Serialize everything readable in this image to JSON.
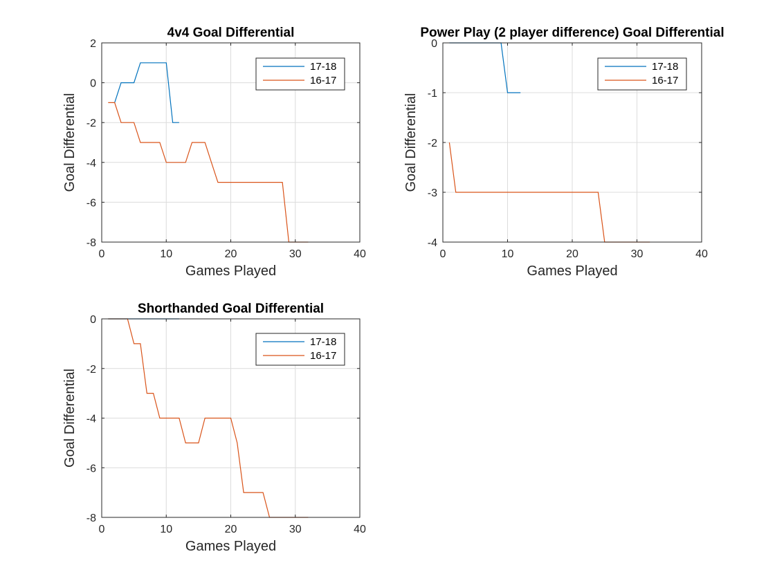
{
  "chart_data": [
    {
      "type": "line",
      "title": "4v4 Goal Differential",
      "xlabel": "Games Played",
      "ylabel": "Goal Differential",
      "xlim": [
        0,
        40
      ],
      "ylim": [
        -8,
        2
      ],
      "xticks": [
        0,
        10,
        20,
        30,
        40
      ],
      "yticks": [
        -8,
        -6,
        -4,
        -2,
        0,
        2
      ],
      "grid": true,
      "legend_placement": "top-right",
      "series": [
        {
          "name": "17-18",
          "color": "#0072BD",
          "x": [
            2,
            3,
            4,
            5,
            6,
            7,
            8,
            9,
            10,
            11,
            12
          ],
          "y": [
            -1,
            0,
            0,
            0,
            1,
            1,
            1,
            1,
            1,
            -2,
            -2
          ]
        },
        {
          "name": "16-17",
          "color": "#D95319",
          "x": [
            1,
            2,
            3,
            4,
            5,
            6,
            7,
            8,
            9,
            10,
            11,
            12,
            13,
            14,
            15,
            16,
            17,
            18,
            19,
            20,
            21,
            22,
            23,
            24,
            25,
            26,
            27,
            28,
            29,
            30,
            31,
            32
          ],
          "y": [
            -1,
            -1,
            -2,
            -2,
            -2,
            -3,
            -3,
            -3,
            -3,
            -4,
            -4,
            -4,
            -4,
            -3,
            -3,
            -3,
            -4,
            -5,
            -5,
            -5,
            -5,
            -5,
            -5,
            -5,
            -5,
            -5,
            -5,
            -5,
            -8,
            -8,
            -8,
            -8
          ]
        }
      ]
    },
    {
      "type": "line",
      "title": "Power Play (2 player difference) Goal Differential",
      "xlabel": "Games Played",
      "ylabel": "Goal Differential",
      "xlim": [
        0,
        40
      ],
      "ylim": [
        -4,
        0
      ],
      "xticks": [
        0,
        10,
        20,
        30,
        40
      ],
      "yticks": [
        -4,
        -3,
        -2,
        -1,
        0
      ],
      "grid": true,
      "legend_placement": "top-right",
      "series": [
        {
          "name": "17-18",
          "color": "#0072BD",
          "x": [
            1,
            2,
            3,
            4,
            5,
            6,
            7,
            8,
            9,
            10,
            11,
            12
          ],
          "y": [
            0,
            0,
            0,
            0,
            0,
            0,
            0,
            0,
            0,
            -1,
            -1,
            -1
          ]
        },
        {
          "name": "16-17",
          "color": "#D95319",
          "x": [
            1,
            2,
            3,
            4,
            5,
            6,
            7,
            8,
            9,
            10,
            11,
            12,
            13,
            14,
            15,
            16,
            17,
            18,
            19,
            20,
            21,
            22,
            23,
            24,
            25,
            26,
            27,
            28,
            29,
            30,
            31,
            32
          ],
          "y": [
            -2,
            -3,
            -3,
            -3,
            -3,
            -3,
            -3,
            -3,
            -3,
            -3,
            -3,
            -3,
            -3,
            -3,
            -3,
            -3,
            -3,
            -3,
            -3,
            -3,
            -3,
            -3,
            -3,
            -3,
            -4,
            -4,
            -4,
            -4,
            -4,
            -4,
            -4,
            -4
          ]
        }
      ]
    },
    {
      "type": "line",
      "title": "Shorthanded Goal Differential",
      "xlabel": "Games Played",
      "ylabel": "Goal Differential",
      "xlim": [
        0,
        40
      ],
      "ylim": [
        -8,
        0
      ],
      "xticks": [
        0,
        10,
        20,
        30,
        40
      ],
      "yticks": [
        -8,
        -6,
        -4,
        -2,
        0
      ],
      "grid": true,
      "legend_placement": "top-right",
      "series": [
        {
          "name": "17-18",
          "color": "#0072BD",
          "x": [
            1,
            2,
            3,
            4,
            5,
            6,
            7,
            8,
            9,
            10,
            11,
            12
          ],
          "y": [
            0,
            0,
            0,
            0,
            0,
            0,
            0,
            0,
            0,
            0,
            0,
            0
          ]
        },
        {
          "name": "16-17",
          "color": "#D95319",
          "x": [
            1,
            2,
            3,
            4,
            5,
            6,
            7,
            8,
            9,
            10,
            11,
            12,
            13,
            14,
            15,
            16,
            17,
            18,
            19,
            20,
            21,
            22,
            23,
            24,
            25,
            26,
            27,
            28,
            29,
            30,
            31,
            32
          ],
          "y": [
            0,
            0,
            0,
            0,
            -1,
            -1,
            -3,
            -3,
            -4,
            -4,
            -4,
            -4,
            -5,
            -5,
            -5,
            -4,
            -4,
            -4,
            -4,
            -4,
            -5,
            -7,
            -7,
            -7,
            -7,
            -8,
            -8,
            -8,
            -8,
            -8,
            -8,
            -8
          ]
        }
      ]
    }
  ]
}
